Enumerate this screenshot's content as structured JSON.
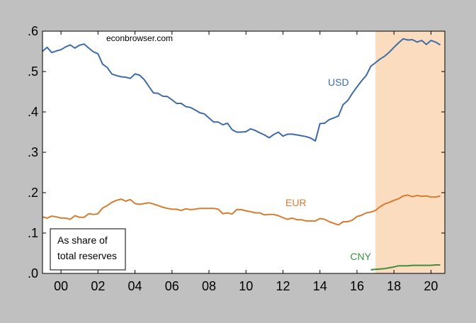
{
  "chart_data": {
    "type": "line",
    "source_label": "econbrowser.com",
    "note_lines": [
      "As share of",
      "total reserves"
    ],
    "xlim": [
      1999.0,
      2020.75
    ],
    "ylim": [
      0.0,
      0.6
    ],
    "y_ticks": [
      {
        "value": 0.0,
        "label": ".0"
      },
      {
        "value": 0.1,
        "label": ".1"
      },
      {
        "value": 0.2,
        "label": ".2"
      },
      {
        "value": 0.3,
        "label": ".3"
      },
      {
        "value": 0.4,
        "label": ".4"
      },
      {
        "value": 0.5,
        "label": ".5"
      },
      {
        "value": 0.6,
        "label": ".6"
      }
    ],
    "x_ticks": [
      {
        "value": 2000,
        "label": "00"
      },
      {
        "value": 2002,
        "label": "02"
      },
      {
        "value": 2004,
        "label": "04"
      },
      {
        "value": 2006,
        "label": "06"
      },
      {
        "value": 2008,
        "label": "08"
      },
      {
        "value": 2010,
        "label": "10"
      },
      {
        "value": 2012,
        "label": "12"
      },
      {
        "value": 2014,
        "label": "14"
      },
      {
        "value": 2016,
        "label": "16"
      },
      {
        "value": 2018,
        "label": "18"
      },
      {
        "value": 2020,
        "label": "20"
      }
    ],
    "shaded_region": {
      "x": [
        2017.0,
        2020.75
      ],
      "color": "#fcdcbf"
    },
    "series": [
      {
        "name": "USD",
        "color": "#3e6ca8",
        "label_at": [
          2015.0,
          0.465
        ],
        "x": [
          1999.0,
          1999.25,
          1999.5,
          1999.75,
          2000.0,
          2000.25,
          2000.5,
          2000.75,
          2001.0,
          2001.25,
          2001.5,
          2001.75,
          2002.0,
          2002.25,
          2002.5,
          2002.75,
          2003.0,
          2003.25,
          2003.5,
          2003.75,
          2004.0,
          2004.25,
          2004.5,
          2004.75,
          2005.0,
          2005.25,
          2005.5,
          2005.75,
          2006.0,
          2006.25,
          2006.5,
          2006.75,
          2007.0,
          2007.25,
          2007.5,
          2007.75,
          2008.0,
          2008.25,
          2008.5,
          2008.75,
          2009.0,
          2009.25,
          2009.5,
          2009.75,
          2010.0,
          2010.25,
          2010.5,
          2010.75,
          2011.0,
          2011.25,
          2011.5,
          2011.75,
          2012.0,
          2012.25,
          2012.5,
          2012.75,
          2013.0,
          2013.25,
          2013.5,
          2013.75,
          2014.0,
          2014.25,
          2014.5,
          2014.75,
          2015.0,
          2015.25,
          2015.5,
          2015.75,
          2016.0,
          2016.25,
          2016.5,
          2016.75,
          2017.0,
          2017.25,
          2017.5,
          2017.75,
          2018.0,
          2018.25,
          2018.5,
          2018.75,
          2019.0,
          2019.25,
          2019.5,
          2019.75,
          2020.0,
          2020.25,
          2020.5
        ],
        "values": [
          0.55,
          0.56,
          0.547,
          0.551,
          0.554,
          0.561,
          0.566,
          0.558,
          0.565,
          0.568,
          0.558,
          0.549,
          0.544,
          0.518,
          0.51,
          0.494,
          0.49,
          0.487,
          0.486,
          0.483,
          0.494,
          0.491,
          0.48,
          0.463,
          0.447,
          0.446,
          0.439,
          0.438,
          0.43,
          0.421,
          0.421,
          0.413,
          0.411,
          0.405,
          0.398,
          0.395,
          0.385,
          0.375,
          0.375,
          0.368,
          0.372,
          0.356,
          0.35,
          0.35,
          0.351,
          0.358,
          0.354,
          0.348,
          0.343,
          0.336,
          0.344,
          0.35,
          0.34,
          0.345,
          0.345,
          0.343,
          0.341,
          0.339,
          0.335,
          0.328,
          0.371,
          0.372,
          0.381,
          0.385,
          0.39,
          0.418,
          0.428,
          0.446,
          0.462,
          0.477,
          0.49,
          0.513,
          0.522,
          0.531,
          0.538,
          0.548,
          0.56,
          0.571,
          0.581,
          0.578,
          0.579,
          0.573,
          0.577,
          0.567,
          0.577,
          0.573,
          0.566
        ]
      },
      {
        "name": "EUR",
        "color": "#d47d32",
        "label_at": [
          2012.7,
          0.167
        ],
        "x": [
          1999.0,
          1999.25,
          1999.5,
          1999.75,
          2000.0,
          2000.25,
          2000.5,
          2000.75,
          2001.0,
          2001.25,
          2001.5,
          2001.75,
          2002.0,
          2002.25,
          2002.5,
          2002.75,
          2003.0,
          2003.25,
          2003.5,
          2003.75,
          2004.0,
          2004.25,
          2004.5,
          2004.75,
          2005.0,
          2005.25,
          2005.5,
          2005.75,
          2006.0,
          2006.25,
          2006.5,
          2006.75,
          2007.0,
          2007.25,
          2007.5,
          2007.75,
          2008.0,
          2008.25,
          2008.5,
          2008.75,
          2009.0,
          2009.25,
          2009.5,
          2009.75,
          2010.0,
          2010.25,
          2010.5,
          2010.75,
          2011.0,
          2011.25,
          2011.5,
          2011.75,
          2012.0,
          2012.25,
          2012.5,
          2012.75,
          2013.0,
          2013.25,
          2013.5,
          2013.75,
          2014.0,
          2014.25,
          2014.5,
          2014.75,
          2015.0,
          2015.25,
          2015.5,
          2015.75,
          2016.0,
          2016.25,
          2016.5,
          2016.75,
          2017.0,
          2017.25,
          2017.5,
          2017.75,
          2018.0,
          2018.25,
          2018.5,
          2018.75,
          2019.0,
          2019.25,
          2019.5,
          2019.75,
          2020.0,
          2020.25,
          2020.5
        ],
        "values": [
          0.14,
          0.137,
          0.142,
          0.14,
          0.137,
          0.137,
          0.134,
          0.143,
          0.139,
          0.139,
          0.148,
          0.146,
          0.148,
          0.162,
          0.168,
          0.176,
          0.181,
          0.184,
          0.179,
          0.183,
          0.173,
          0.171,
          0.173,
          0.175,
          0.172,
          0.168,
          0.164,
          0.161,
          0.159,
          0.159,
          0.156,
          0.16,
          0.158,
          0.159,
          0.161,
          0.161,
          0.161,
          0.161,
          0.159,
          0.148,
          0.15,
          0.147,
          0.158,
          0.158,
          0.155,
          0.153,
          0.15,
          0.15,
          0.145,
          0.146,
          0.146,
          0.143,
          0.138,
          0.134,
          0.137,
          0.133,
          0.133,
          0.13,
          0.13,
          0.13,
          0.136,
          0.134,
          0.128,
          0.124,
          0.12,
          0.128,
          0.128,
          0.132,
          0.141,
          0.144,
          0.15,
          0.152,
          0.156,
          0.165,
          0.172,
          0.176,
          0.181,
          0.185,
          0.192,
          0.194,
          0.19,
          0.193,
          0.191,
          0.192,
          0.189,
          0.189,
          0.192
        ]
      },
      {
        "name": "CNY",
        "color": "#3e8e3e",
        "label_at": [
          2016.2,
          0.033
        ],
        "x": [
          2016.75,
          2017.0,
          2017.25,
          2017.5,
          2017.75,
          2018.0,
          2018.25,
          2018.5,
          2018.75,
          2019.0,
          2019.25,
          2019.5,
          2019.75,
          2020.0,
          2020.25,
          2020.5
        ],
        "values": [
          0.009,
          0.01,
          0.011,
          0.012,
          0.014,
          0.016,
          0.019,
          0.019,
          0.019,
          0.02,
          0.02,
          0.02,
          0.02,
          0.02,
          0.021,
          0.021
        ]
      }
    ]
  }
}
